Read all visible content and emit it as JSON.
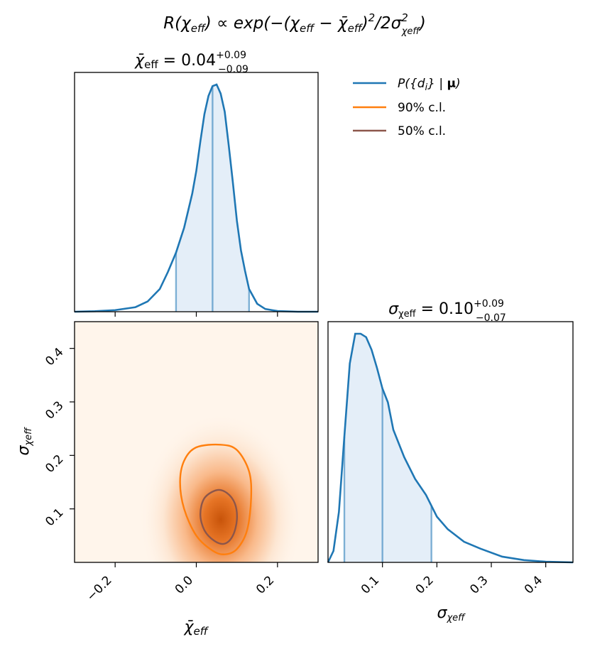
{
  "figure": {
    "title_prefix": "R(χ",
    "title_sub1": "eff",
    "title_mid": ") ∝ exp(−(χ",
    "title_sub2": "eff",
    "title_mid2": " − χ̄",
    "title_sub3": "eff",
    "title_mid3": ")",
    "title_sup1": "2",
    "title_mid4": "/2σ",
    "title_sup2": "2",
    "title_sub4": "χeff",
    "title_end": ")"
  },
  "colors": {
    "posterior": "#1f77b4",
    "ci90": "#ff7f0e",
    "ci50": "#8c564b",
    "fill": "#dbe8f5",
    "heat_low": "#fff5eb",
    "heat_high": "#d45a0b"
  },
  "chart_data": [
    {
      "type": "line",
      "panel": "marginal-mean",
      "title_symbol": "χ̄",
      "title_sub": "eff",
      "title_eq": " = 0.04",
      "title_plus": "+0.09",
      "title_minus": "−0.09",
      "median": 0.04,
      "err_plus": 0.09,
      "err_minus": 0.09,
      "xlim": [
        -0.3,
        0.3
      ],
      "x": [
        -0.3,
        -0.25,
        -0.2,
        -0.15,
        -0.12,
        -0.09,
        -0.07,
        -0.05,
        -0.03,
        -0.01,
        0.0,
        0.01,
        0.02,
        0.03,
        0.04,
        0.05,
        0.06,
        0.07,
        0.08,
        0.09,
        0.1,
        0.11,
        0.12,
        0.13,
        0.15,
        0.17,
        0.2,
        0.25,
        0.3
      ],
      "y": [
        0.0,
        0.002,
        0.007,
        0.02,
        0.045,
        0.1,
        0.175,
        0.26,
        0.37,
        0.52,
        0.62,
        0.75,
        0.87,
        0.95,
        0.993,
        1.0,
        0.96,
        0.88,
        0.73,
        0.57,
        0.4,
        0.27,
        0.18,
        0.1,
        0.035,
        0.012,
        0.003,
        0.0,
        0.0
      ],
      "vlines": [
        -0.05,
        0.04,
        0.13
      ]
    },
    {
      "type": "heatmap",
      "panel": "joint",
      "xlabel_symbol": "χ̄",
      "xlabel_sub": "eff",
      "ylabel_symbol": "σ",
      "ylabel_sub": "χeff",
      "xlim": [
        -0.3,
        0.3
      ],
      "ylim": [
        0.0,
        0.45
      ],
      "xticks": [
        -0.2,
        0.0,
        0.2
      ],
      "xtick_labels": [
        "−0.2",
        "0.0",
        "0.2"
      ],
      "yticks": [
        0.1,
        0.2,
        0.3,
        0.4
      ],
      "ytick_labels": [
        "0.1",
        "0.2",
        "0.3",
        "0.4"
      ],
      "peak": [
        0.06,
        0.08
      ],
      "contour90": [
        [
          0.06,
          0.22
        ],
        [
          0.1,
          0.21
        ],
        [
          0.13,
          0.17
        ],
        [
          0.135,
          0.12
        ],
        [
          0.125,
          0.06
        ],
        [
          0.1,
          0.025
        ],
        [
          0.07,
          0.015
        ],
        [
          0.04,
          0.022
        ],
        [
          0.0,
          0.05
        ],
        [
          -0.03,
          0.1
        ],
        [
          -0.04,
          0.15
        ],
        [
          -0.03,
          0.19
        ],
        [
          0.0,
          0.215
        ]
      ],
      "contour50": [
        [
          0.05,
          0.135
        ],
        [
          0.075,
          0.13
        ],
        [
          0.095,
          0.11
        ],
        [
          0.1,
          0.08
        ],
        [
          0.09,
          0.05
        ],
        [
          0.07,
          0.035
        ],
        [
          0.045,
          0.04
        ],
        [
          0.02,
          0.06
        ],
        [
          0.01,
          0.09
        ],
        [
          0.02,
          0.12
        ]
      ]
    },
    {
      "type": "line",
      "panel": "marginal-sigma",
      "title_symbol": "σ",
      "title_sub": "χeff",
      "title_eq": " = 0.10",
      "title_plus": "+0.09",
      "title_minus": "−0.07",
      "median": 0.1,
      "err_plus": 0.09,
      "err_minus": 0.07,
      "xlabel_symbol": "σ",
      "xlabel_sub": "χeff",
      "xlim": [
        0.0,
        0.45
      ],
      "xticks": [
        0.1,
        0.2,
        0.3,
        0.4
      ],
      "xtick_labels": [
        "0.1",
        "0.2",
        "0.3",
        "0.4"
      ],
      "x": [
        0.0,
        0.01,
        0.02,
        0.03,
        0.04,
        0.05,
        0.06,
        0.07,
        0.08,
        0.09,
        0.1,
        0.11,
        0.12,
        0.14,
        0.16,
        0.18,
        0.2,
        0.22,
        0.25,
        0.28,
        0.32,
        0.36,
        0.4,
        0.45
      ],
      "y": [
        0.0,
        0.05,
        0.22,
        0.55,
        0.87,
        1.0,
        1.0,
        0.985,
        0.93,
        0.85,
        0.76,
        0.7,
        0.58,
        0.46,
        0.365,
        0.295,
        0.2,
        0.145,
        0.09,
        0.06,
        0.025,
        0.01,
        0.003,
        0.0
      ],
      "vlines": [
        0.03,
        0.1,
        0.19
      ]
    }
  ],
  "legend": [
    {
      "label_pre": "P({d",
      "label_sub": "i",
      "label_post": "} | ",
      "label_bold": "μ",
      "label_end": ")",
      "color_key": "posterior"
    },
    {
      "label": "90% c.l.",
      "color_key": "ci90"
    },
    {
      "label": "50% c.l.",
      "color_key": "ci50"
    }
  ]
}
